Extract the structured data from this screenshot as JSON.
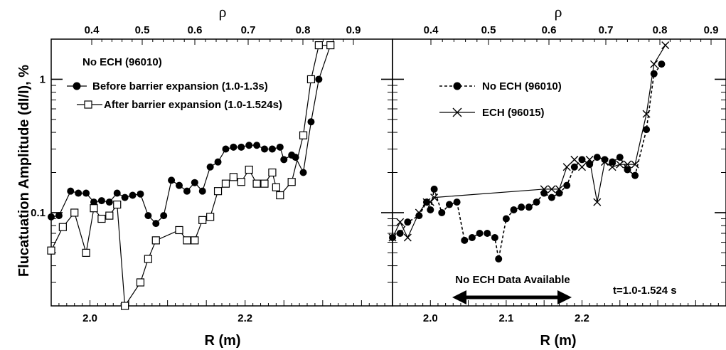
{
  "chart_data": [
    {
      "type": "line",
      "panel": "left",
      "ylabel": "Flucatuation Amplitude (dI/I), %",
      "xlabel": "R (m)",
      "top_axis_label": "ρ",
      "yscale": "log",
      "ylim": [
        0.02,
        2.0
      ],
      "xlim": [
        1.95,
        2.39
      ],
      "x_ticks": [
        "2.0",
        "2.2"
      ],
      "top_ticks": [
        "0.4",
        "0.5",
        "0.6",
        "0.7",
        "0.8",
        "0.9"
      ],
      "y_ticks": [
        "0.1",
        "1"
      ],
      "legend_title": "No ECH (96010)",
      "legend_position": "top-left",
      "series": [
        {
          "name": "Before barrier expansion (1.0-1.3s)",
          "marker": "filled-circle",
          "line": "solid",
          "x": [
            1.95,
            1.96,
            1.975,
            1.985,
            1.995,
            2.005,
            2.015,
            2.025,
            2.035,
            2.045,
            2.055,
            2.065,
            2.075,
            2.085,
            2.095,
            2.105,
            2.115,
            2.125,
            2.135,
            2.145,
            2.155,
            2.165,
            2.175,
            2.185,
            2.195,
            2.205,
            2.215,
            2.225,
            2.235,
            2.245,
            2.25,
            2.26,
            2.265,
            2.275,
            2.285,
            2.295,
            2.31
          ],
          "y": [
            0.093,
            0.095,
            0.145,
            0.14,
            0.14,
            0.12,
            0.123,
            0.12,
            0.14,
            0.13,
            0.135,
            0.138,
            0.095,
            0.083,
            0.095,
            0.175,
            0.16,
            0.145,
            0.168,
            0.145,
            0.22,
            0.24,
            0.3,
            0.31,
            0.31,
            0.32,
            0.32,
            0.3,
            0.3,
            0.31,
            0.25,
            0.27,
            0.26,
            0.2,
            0.48,
            1.0,
            1.8
          ]
        },
        {
          "name": "After barrier expansion (1.0-1.524s)",
          "marker": "open-square",
          "line": "solid",
          "x": [
            1.95,
            1.965,
            1.98,
            1.995,
            2.005,
            2.015,
            2.025,
            2.035,
            2.045,
            2.065,
            2.075,
            2.085,
            2.115,
            2.125,
            2.135,
            2.145,
            2.155,
            2.165,
            2.175,
            2.185,
            2.195,
            2.205,
            2.215,
            2.225,
            2.235,
            2.24,
            2.245,
            2.26,
            2.275,
            2.285,
            2.295,
            2.31
          ],
          "y": [
            0.052,
            0.078,
            0.1,
            0.05,
            0.108,
            0.09,
            0.095,
            0.115,
            0.02,
            0.03,
            0.045,
            0.062,
            0.074,
            0.062,
            0.062,
            0.088,
            0.093,
            0.145,
            0.165,
            0.185,
            0.17,
            0.21,
            0.165,
            0.165,
            0.2,
            0.155,
            0.135,
            0.17,
            0.38,
            1.0,
            1.8,
            1.8
          ]
        }
      ]
    },
    {
      "type": "line",
      "panel": "right",
      "xlabel": "R (m)",
      "top_axis_label": "ρ",
      "yscale": "log",
      "ylim": [
        0.02,
        2.0
      ],
      "xlim": [
        1.95,
        2.39
      ],
      "x_ticks": [
        "2.0",
        "2.1",
        "2.2"
      ],
      "top_ticks": [
        "0.4",
        "0.5",
        "0.6",
        "0.7",
        "0.8",
        "0.9"
      ],
      "legend_position": "top-left",
      "series": [
        {
          "name": "No ECH (96010)",
          "marker": "filled-circle",
          "line": "dashed",
          "x": [
            1.95,
            1.96,
            1.97,
            1.985,
            1.995,
            2.0,
            2.005,
            2.015,
            2.025,
            2.035,
            2.045,
            2.055,
            2.065,
            2.075,
            2.085,
            2.09,
            2.1,
            2.11,
            2.12,
            2.13,
            2.14,
            2.15,
            2.16,
            2.17,
            2.18,
            2.19,
            2.2,
            2.21,
            2.22,
            2.23,
            2.24,
            2.25,
            2.26,
            2.27,
            2.285,
            2.295,
            2.305
          ],
          "y": [
            0.065,
            0.07,
            0.085,
            0.095,
            0.12,
            0.105,
            0.15,
            0.1,
            0.115,
            0.12,
            0.062,
            0.065,
            0.07,
            0.07,
            0.065,
            0.045,
            0.09,
            0.105,
            0.11,
            0.11,
            0.12,
            0.14,
            0.13,
            0.14,
            0.16,
            0.22,
            0.25,
            0.23,
            0.26,
            0.25,
            0.24,
            0.26,
            0.21,
            0.19,
            0.42,
            1.1,
            1.3
          ]
        },
        {
          "name": "ECH (96015)",
          "marker": "x",
          "line": "solid",
          "x": [
            1.95,
            1.96,
            1.97,
            1.985,
            1.995,
            2.0,
            2.005,
            2.15,
            2.16,
            2.17,
            2.18,
            2.19,
            2.2,
            2.21,
            2.22,
            2.23,
            2.24,
            2.25,
            2.26,
            2.27,
            2.285,
            2.295,
            2.31
          ],
          "y": [
            0.065,
            0.085,
            0.065,
            0.1,
            0.12,
            0.12,
            0.13,
            0.15,
            0.15,
            0.15,
            0.22,
            0.25,
            0.22,
            0.25,
            0.12,
            0.24,
            0.22,
            0.23,
            0.23,
            0.23,
            0.55,
            1.3,
            1.8
          ]
        }
      ],
      "annotations": {
        "no_data": "No ECH Data Available",
        "time": "t=1.0-1.524 s"
      }
    }
  ]
}
